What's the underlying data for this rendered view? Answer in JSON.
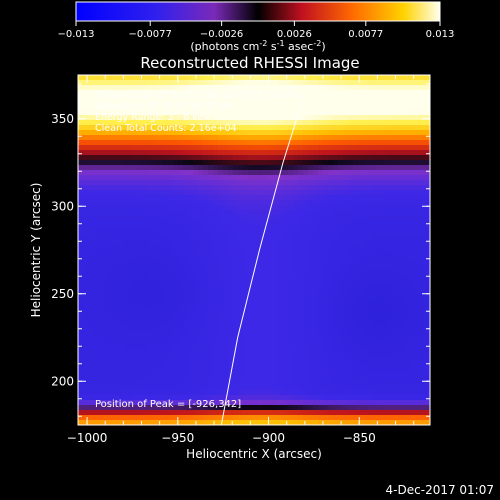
{
  "colorbar": {
    "tick_labels": [
      "-0.013",
      "-0.0077",
      "-0.0026",
      "0.0026",
      "0.0077",
      "0.013"
    ],
    "units_base": "(photons cm",
    "units_exp1": "-2",
    "units_mid": " s",
    "units_exp2": "-1",
    "units_end": " asec",
    "units_exp3": "-2",
    "units_close": ")"
  },
  "info_lines": [
    "28-Jun-2015 07:10:32.000 to 07:11:20.000",
    "Detectors: 3F 4F 5F 6F 8F 9F",
    "Energy Range: 3 - 6 keV",
    "Clean    Total Counts: 2.16e+04"
  ],
  "peak_label": "Position of Peak = [-926,342]",
  "footer_date": "4-Dec-2017 01:07",
  "chart_data": {
    "type": "heatmap",
    "title": "Reconstructed RHESSI Image",
    "xlabel": "Heliocentric X (arcsec)",
    "ylabel": "Heliocentric Y (arcsec)",
    "xlim": [
      -1005,
      -811
    ],
    "ylim": [
      175,
      375
    ],
    "xticks": [
      -1000,
      -950,
      -900,
      -850
    ],
    "yticks": [
      200,
      250,
      300,
      350
    ],
    "xtick_labels": [
      "−1000",
      "−950",
      "−900",
      "−850"
    ],
    "ytick_labels": [
      "200",
      "250",
      "300",
      "350"
    ],
    "colorbar_range": [
      -0.013,
      0.013
    ],
    "peak_position": [
      -926,
      342
    ],
    "limb_curve": [
      [
        -926,
        175
      ],
      [
        -917,
        225
      ],
      [
        -905,
        275
      ],
      [
        -892,
        325
      ],
      [
        -880,
        365
      ]
    ]
  }
}
